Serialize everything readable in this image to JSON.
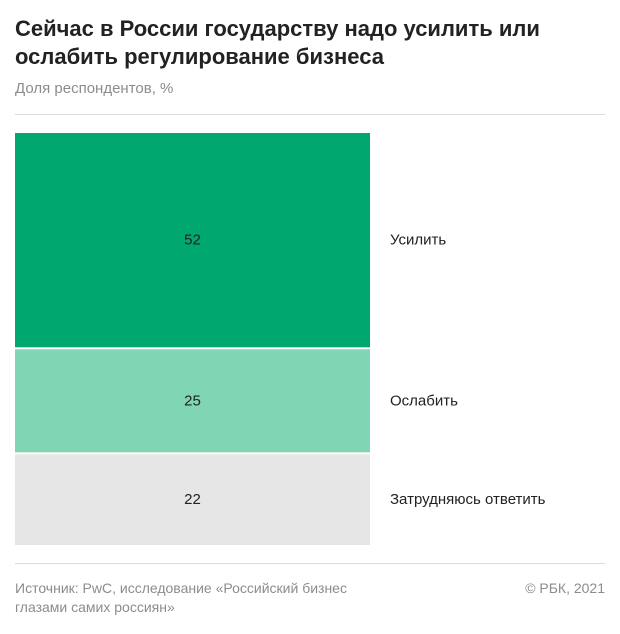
{
  "header": {
    "title": "Сейчас в России государству надо усилить или ослабить регулирование бизнеса",
    "subtitle": "Доля респондентов, %"
  },
  "footer": {
    "source": "Источник: PwC, исследование «Российский бизнес глазами самих россиян»",
    "copyright": "© РБК, 2021"
  },
  "chart_data": {
    "type": "bar",
    "layout": "stacked-vertical",
    "unit": "%",
    "categories": [
      "Усилить",
      "Ослабить",
      "Затрудняюсь ответить"
    ],
    "values": [
      52,
      25,
      22
    ],
    "colors": [
      "#00a86f",
      "#80d6b4",
      "#e6e6e6"
    ],
    "label_color": "#222222"
  }
}
